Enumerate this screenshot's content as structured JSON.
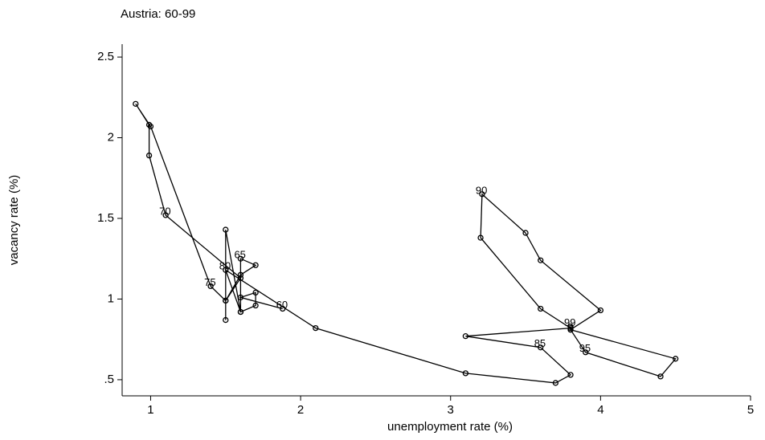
{
  "chart_data": {
    "type": "line",
    "title": "Austria: 60-99",
    "x_label": "unemployment rate (%)",
    "y_label": "vacancy rate (%)",
    "x": [
      1.88,
      1.6,
      1.7,
      1.7,
      1.6,
      1.6,
      1.7,
      1.6,
      1.5,
      1.6,
      1.1,
      0.99,
      0.99,
      0.9,
      1.0,
      1.4,
      1.5,
      1.5,
      1.5,
      1.6,
      1.5,
      2.1,
      3.1,
      3.7,
      3.8,
      3.6,
      3.1,
      3.8,
      3.6,
      3.2,
      3.21,
      3.5,
      3.6,
      4.0,
      3.8,
      3.9,
      4.4,
      4.5,
      3.8,
      3.8
    ],
    "values": [
      0.94,
      1.01,
      1.04,
      0.96,
      0.92,
      1.25,
      1.21,
      1.15,
      0.99,
      1.13,
      1.52,
      1.89,
      2.08,
      2.21,
      2.07,
      1.08,
      0.99,
      0.87,
      1.43,
      0.92,
      1.18,
      0.82,
      0.54,
      0.48,
      0.53,
      0.7,
      0.77,
      0.82,
      0.94,
      1.38,
      1.65,
      1.41,
      1.24,
      0.93,
      0.81,
      0.67,
      0.52,
      0.63,
      0.81,
      0.83
    ],
    "point_labels": [
      "60",
      null,
      null,
      null,
      null,
      "65",
      null,
      null,
      null,
      null,
      "70",
      null,
      null,
      null,
      null,
      "75",
      null,
      null,
      null,
      null,
      "80",
      null,
      null,
      null,
      null,
      "85",
      null,
      null,
      null,
      null,
      "90",
      null,
      null,
      null,
      null,
      "95",
      null,
      null,
      null,
      "99"
    ],
    "color": "#000000",
    "xlim": [
      0.81,
      5
    ],
    "ylim": [
      0.4,
      2.58
    ],
    "xticks": [
      1,
      2,
      3,
      4,
      5
    ],
    "yticks": [
      {
        "value": 0.5,
        "label": ".5"
      },
      1,
      1.5,
      2,
      2.5
    ]
  }
}
